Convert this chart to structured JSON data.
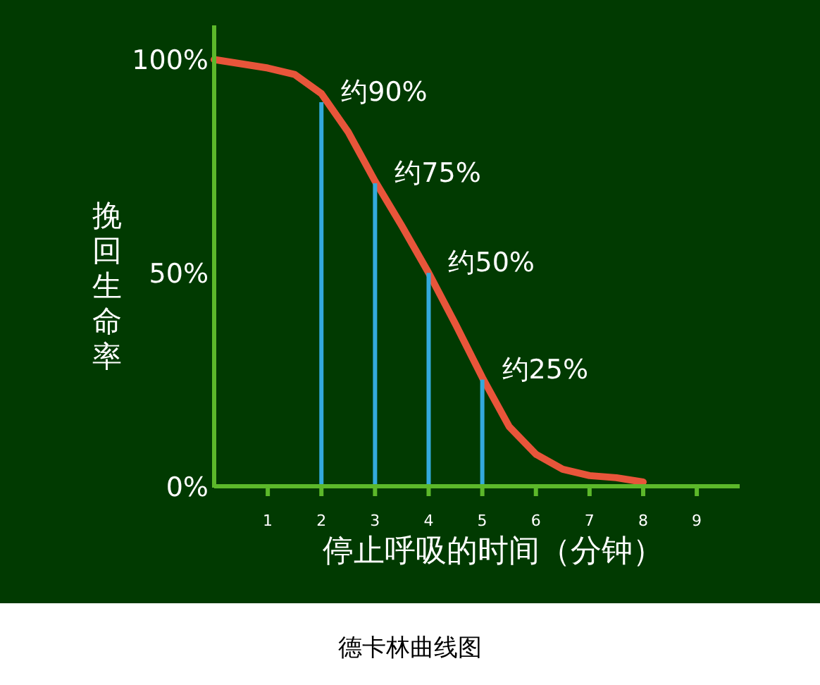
{
  "chart_data": {
    "type": "line",
    "title": "德卡林曲线图",
    "xlabel": "停止呼吸的时间（分钟）",
    "ylabel": "挽回生命率",
    "series": [
      {
        "color": "#e8553a",
        "x": [
          0,
          1,
          1.5,
          2,
          2.5,
          3,
          3.5,
          4,
          4.5,
          5,
          5.5,
          6,
          6.5,
          7,
          7.5,
          8
        ],
        "values": [
          100,
          98,
          96.5,
          92,
          83,
          71.5,
          61,
          50,
          38,
          25.5,
          14,
          7.5,
          4,
          2.5,
          2,
          1
        ]
      },
      {
        "type": "bar",
        "color": "#33aadd",
        "x": [
          2,
          3,
          4,
          5
        ],
        "values": [
          90,
          71,
          50,
          25
        ]
      }
    ],
    "annotations": [
      {
        "text": "约90%",
        "x": 2,
        "y": 90
      },
      {
        "text": "约75%",
        "x": 3,
        "y": 71
      },
      {
        "text": "约50%",
        "x": 4,
        "y": 50
      },
      {
        "text": "约25%",
        "x": 5,
        "y": 25
      }
    ],
    "xlim": [
      0,
      9.8
    ],
    "ylim": [
      0,
      108
    ],
    "xticks": [
      1,
      2,
      3,
      4,
      5,
      6,
      7,
      8,
      9
    ],
    "yticks": [
      {
        "value": 0,
        "label": "0%"
      },
      {
        "value": 50,
        "label": "50%"
      },
      {
        "value": 100,
        "label": "100%"
      }
    ],
    "grid": false,
    "marker": "none"
  }
}
